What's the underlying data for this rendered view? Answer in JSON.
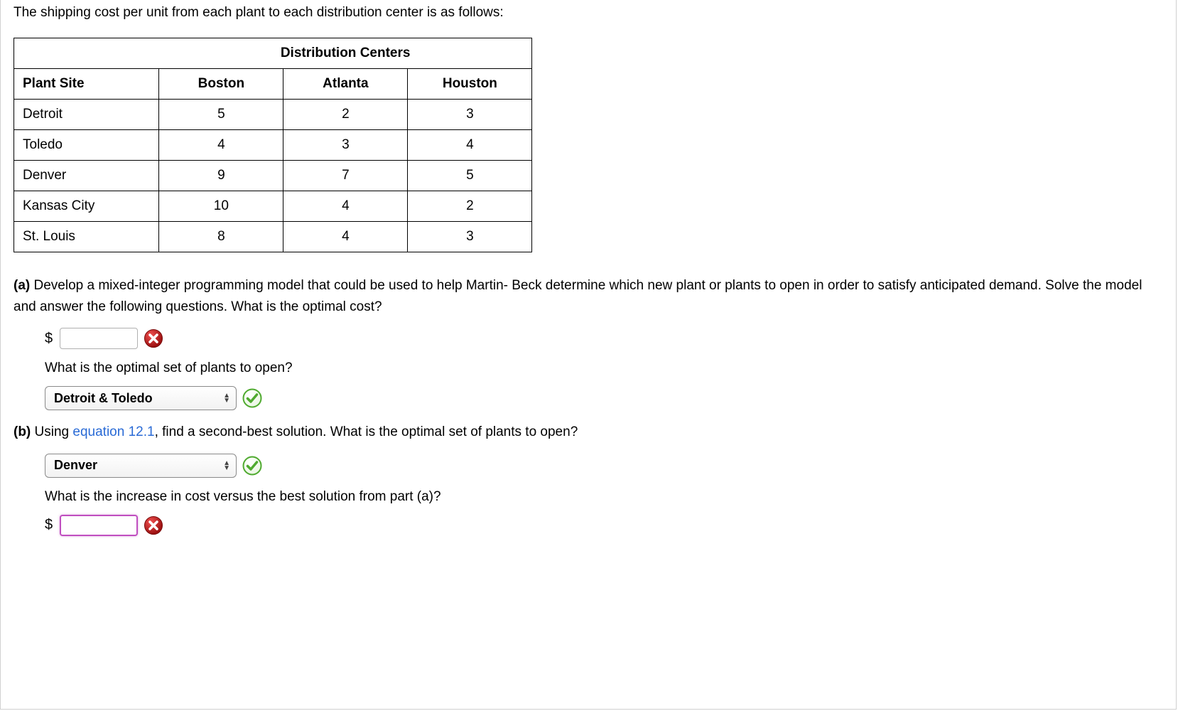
{
  "intro": "The shipping cost per unit from each plant to each distribution center is as follows:",
  "table": {
    "group_header": "Distribution Centers",
    "row_header": "Plant Site",
    "columns": [
      "Boston",
      "Atlanta",
      "Houston"
    ],
    "rows": [
      {
        "plant": "Detroit",
        "vals": [
          "5",
          "2",
          "3"
        ]
      },
      {
        "plant": "Toledo",
        "vals": [
          "4",
          "3",
          "4"
        ]
      },
      {
        "plant": "Denver",
        "vals": [
          "9",
          "7",
          "5"
        ]
      },
      {
        "plant": "Kansas City",
        "vals": [
          "10",
          "4",
          "2"
        ]
      },
      {
        "plant": "St. Louis",
        "vals": [
          "8",
          "4",
          "3"
        ]
      }
    ]
  },
  "partA": {
    "label": "(a)",
    "text": "Develop a mixed-integer programming model that could be used to help Martin- Beck determine which new plant or plants to open in order to satisfy anticipated demand. Solve the model and answer the following questions. What is the optimal cost?",
    "currency": "$",
    "cost_value": "",
    "q2": "What is the optimal set of plants to open?",
    "select_value": "Detroit & Toledo"
  },
  "partB": {
    "label": "(b)",
    "text_pre": "Using ",
    "link": "equation 12.1",
    "text_post": ", find a second-best solution. What is the optimal set of plants to open?",
    "select_value": "Denver",
    "q2": "What is the increase in cost versus the best solution from part (a)?",
    "currency": "$",
    "cost_value": ""
  },
  "icons": {
    "wrong_bg": "#b01818",
    "wrong_grad_top": "#e03030",
    "wrong_stroke": "#ffffff",
    "correct_stroke": "#4faa2f",
    "correct_grad_top": "#9be07a"
  }
}
